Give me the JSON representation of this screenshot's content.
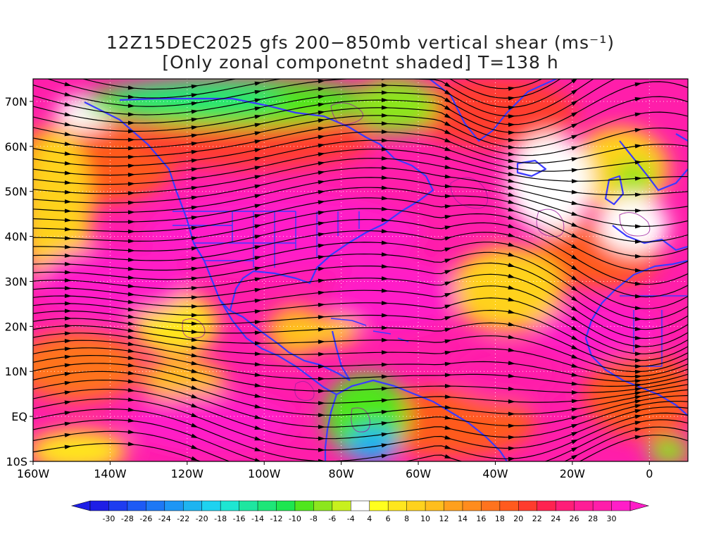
{
  "title": {
    "line1": "12Z15DEC2025 gfs 200−850mb vertical shear (ms⁻¹)",
    "line2": "[Only zonal componetnt shaded] T=138 h"
  },
  "axes": {
    "lat_labels": [
      "70N",
      "60N",
      "50N",
      "40N",
      "30N",
      "20N",
      "10N",
      "EQ",
      "10S"
    ],
    "lat_values": [
      70,
      60,
      50,
      40,
      30,
      20,
      10,
      0,
      -10
    ],
    "lon_labels": [
      "160W",
      "140W",
      "120W",
      "100W",
      "80W",
      "60W",
      "40W",
      "20W",
      "0"
    ],
    "lon_values": [
      -160,
      -140,
      -120,
      -100,
      -80,
      -60,
      -40,
      -20,
      0
    ],
    "lat_range": [
      -10,
      75
    ],
    "lon_range": [
      -160,
      10
    ],
    "grid": "dotted"
  },
  "colorbar": {
    "labels": [
      "-30",
      "-28",
      "-26",
      "-24",
      "-22",
      "-20",
      "-18",
      "-16",
      "-14",
      "-12",
      "-10",
      "-8",
      "-6",
      "-4",
      "4",
      "6",
      "8",
      "10",
      "12",
      "14",
      "16",
      "18",
      "20",
      "22",
      "24",
      "26",
      "28",
      "30"
    ],
    "colors": [
      "#1e1ee6",
      "#1e3cf0",
      "#1e5af5",
      "#1e78f5",
      "#1e96f5",
      "#1eb4f0",
      "#1ed2f0",
      "#1ee6d2",
      "#1ee6a0",
      "#1ee678",
      "#1ee650",
      "#50e61e",
      "#8ce61e",
      "#c8f01e",
      "#ffffff",
      "#ffff1e",
      "#ffe61e",
      "#ffd21e",
      "#ffbe1e",
      "#ffa01e",
      "#ff8c1e",
      "#ff731e",
      "#ff5a1e",
      "#ff3c2d",
      "#ff2350",
      "#ff1e78",
      "#ff1e96",
      "#ff1eaa",
      "#ff1ec8"
    ],
    "left_arrow_color": "#1e1ee6",
    "right_arrow_color": "#ff1ec8"
  },
  "colors": {
    "continent_outline": "#3b3bff",
    "streamline": "#000000",
    "magenta_contours": "#9a1ea0"
  }
}
